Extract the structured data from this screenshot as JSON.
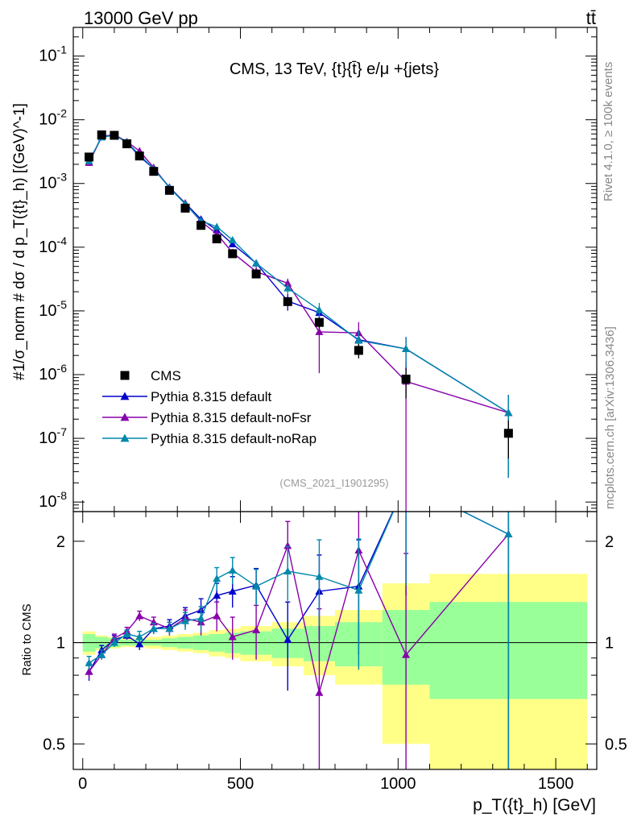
{
  "header": {
    "left": "13000 GeV pp",
    "right": "tt̄"
  },
  "side_text": {
    "rivet": "Rivet 4.1.0, ≥ 100k events",
    "mcplots": "mcplots.cern.ch [arXiv:1306.3436]"
  },
  "chart_data": {
    "type": "line",
    "title": "CMS, 13 TeV, {t}{t̄} e/μ +{jets}",
    "analysis_tag": "(CMS_2021_I1901295)",
    "xlabel": "p_T({t}_h) [GeV]",
    "ylabel": "#1/σ_norm # dσ / d p_T({t}_h) [(GeV)^-1]",
    "ratio_ylabel": "Ratio to CMS",
    "xlim": [
      -30,
      1630
    ],
    "ylim_log": [
      -8.15,
      -0.55
    ],
    "ratio_ylim": [
      0.42,
      2.45
    ],
    "x_ticks": [
      0,
      500,
      1000,
      1500
    ],
    "x_tick_labels": [
      "0",
      "500",
      "1000",
      "1500"
    ],
    "y_tick_labels": [
      "10^-8",
      "10^-7",
      "10^-6",
      "10^-5",
      "10^-4",
      "10^-3",
      "10^-2",
      "10^-1"
    ],
    "ratio_ticks": [
      0.5,
      1,
      2
    ],
    "ratio_tick_labels": [
      "0.5",
      "1",
      "2"
    ],
    "bins": [
      [
        0,
        40
      ],
      [
        40,
        80
      ],
      [
        80,
        120
      ],
      [
        120,
        160
      ],
      [
        160,
        200
      ],
      [
        200,
        250
      ],
      [
        250,
        300
      ],
      [
        300,
        350
      ],
      [
        350,
        400
      ],
      [
        400,
        450
      ],
      [
        450,
        500
      ],
      [
        500,
        600
      ],
      [
        600,
        700
      ],
      [
        700,
        800
      ],
      [
        800,
        950
      ],
      [
        950,
        1100
      ],
      [
        1100,
        1600
      ]
    ],
    "x": [
      20,
      60,
      100,
      140,
      180,
      225,
      275,
      325,
      375,
      425,
      475,
      550,
      650,
      750,
      875,
      1025,
      1350
    ],
    "data": {
      "name": "CMS",
      "values": [
        0.0026,
        0.0058,
        0.0057,
        0.0042,
        0.0027,
        0.00155,
        0.00078,
        0.00041,
        0.00022,
        0.000135,
        7.9e-05,
        3.8e-05,
        1.4e-05,
        6.6e-06,
        2.4e-06,
        8.5e-07,
        1.2e-07
      ],
      "band_inner": [
        0.06,
        0.04,
        0.03,
        0.02,
        0.02,
        0.02,
        0.03,
        0.04,
        0.05,
        0.06,
        0.07,
        0.08,
        0.1,
        0.12,
        0.15,
        0.25,
        0.32
      ],
      "band_outer": [
        0.08,
        0.05,
        0.04,
        0.03,
        0.03,
        0.04,
        0.05,
        0.06,
        0.07,
        0.09,
        0.1,
        0.12,
        0.15,
        0.2,
        0.25,
        0.5,
        0.6
      ]
    },
    "series": [
      {
        "name": "Pythia 8.315 default",
        "color": "#0000cc",
        "ratio": [
          0.82,
          0.95,
          1.02,
          1.05,
          0.99,
          1.1,
          1.12,
          1.2,
          1.25,
          1.38,
          1.42,
          1.48,
          1.02,
          1.42,
          1.47,
          2.98,
          2.1
        ],
        "ratio_err": [
          0.05,
          0.03,
          0.03,
          0.03,
          0.04,
          0.04,
          0.05,
          0.07,
          0.1,
          0.12,
          0.15,
          0.18,
          0.3,
          0.4,
          0.55,
          1.6,
          1.9
        ]
      },
      {
        "name": "Pythia 8.315 default-noFsr",
        "color": "#8800aa",
        "ratio": [
          0.82,
          0.92,
          1.03,
          1.08,
          1.2,
          1.15,
          1.1,
          1.18,
          1.15,
          1.2,
          1.04,
          1.09,
          1.94,
          0.71,
          1.88,
          0.92,
          2.1
        ],
        "ratio_err": [
          0.04,
          0.03,
          0.03,
          0.03,
          0.04,
          0.04,
          0.05,
          0.07,
          0.1,
          0.12,
          0.15,
          0.2,
          0.35,
          0.55,
          0.9,
          0.92,
          1.9
        ]
      },
      {
        "name": "Pythia 8.315 default-noRap",
        "color": "#0088aa",
        "ratio": [
          0.87,
          0.92,
          1.0,
          1.06,
          1.04,
          1.1,
          1.1,
          1.16,
          1.18,
          1.55,
          1.64,
          1.47,
          1.63,
          1.57,
          1.43,
          2.98,
          2.1
        ],
        "ratio_err": [
          0.04,
          0.03,
          0.03,
          0.03,
          0.04,
          0.04,
          0.05,
          0.07,
          0.1,
          0.12,
          0.15,
          0.18,
          0.3,
          0.45,
          0.6,
          1.5,
          1.9
        ]
      }
    ]
  }
}
